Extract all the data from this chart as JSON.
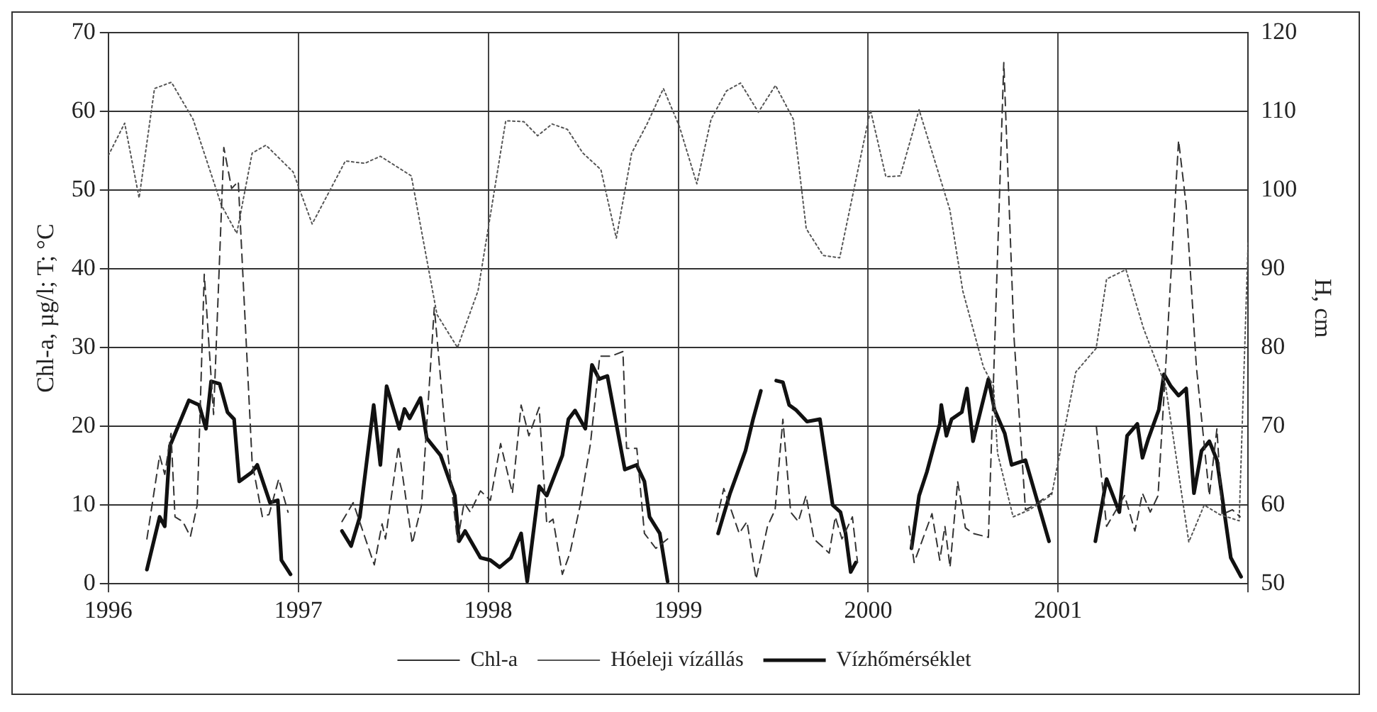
{
  "chart_data": {
    "type": "line",
    "ylabel": "Chl-a, µg/l; T; °C",
    "y2label": "H, cm",
    "xlim": [
      1996,
      2002
    ],
    "xticks": [
      1996,
      1997,
      1998,
      1999,
      2000,
      2001,
      {
        "value": 2002,
        "label": null
      }
    ],
    "ylim": [
      0,
      70
    ],
    "yticks": [
      0,
      10,
      20,
      30,
      40,
      50,
      60,
      70
    ],
    "y2lim": [
      50,
      120
    ],
    "y2ticks": [
      50,
      60,
      70,
      80,
      90,
      100,
      110,
      120
    ],
    "grid": true,
    "legend": "bottom",
    "marker": "none",
    "series": [
      {
        "name": "Chl-a",
        "color": "#333333",
        "line_style": "dashed",
        "x": [
          1996.203,
          1996.27,
          1996.297,
          1996.33,
          1996.351,
          1996.392,
          1996.432,
          1996.468,
          1996.505,
          1996.554,
          1996.608,
          1996.649,
          1996.684,
          1996.757,
          1996.811,
          1996.846,
          1996.897,
          1996.946,
          1997.1,
          1997.23,
          1997.289,
          1997.4,
          1997.441,
          1997.459,
          1997.527,
          1997.6,
          1997.649,
          1997.716,
          1997.77,
          1997.838,
          1997.873,
          1997.905,
          1997.959,
          1998.011,
          1998.065,
          1998.127,
          1998.173,
          1998.214,
          1998.268,
          1998.308,
          1998.341,
          1998.39,
          1998.43,
          1998.484,
          1998.538,
          1998.587,
          1998.646,
          1998.709,
          1998.728,
          1998.782,
          1998.822,
          1998.882,
          1998.944,
          1999.1,
          1999.2,
          1999.24,
          1999.321,
          1999.362,
          1999.41,
          1999.47,
          1999.51,
          1999.551,
          1999.592,
          1999.632,
          1999.673,
          1999.714,
          1999.795,
          1999.827,
          1999.862,
          1999.917,
          1999.944,
          2000.1,
          2000.215,
          2000.242,
          2000.336,
          2000.377,
          2000.404,
          2000.431,
          2000.471,
          2000.512,
          2000.552,
          2000.633,
          2000.714,
          2000.768,
          2000.828,
          2000.876,
          2000.965,
          2001.1,
          2001.201,
          2001.255,
          2001.35,
          2001.404,
          2001.444,
          2001.485,
          2001.526,
          2001.566,
          2001.634,
          2001.674,
          2001.728,
          2001.796,
          2001.836,
          2001.863,
          2001.917,
          2001.958
        ],
        "values": [
          5.7,
          16.3,
          13.9,
          19.1,
          8.5,
          7.9,
          6,
          10,
          39.3,
          21.5,
          55.4,
          50.2,
          51.1,
          15.4,
          8.5,
          8.8,
          13.3,
          9.1,
          null,
          7.9,
          10.3,
          2.4,
          7.6,
          5.7,
          17.5,
          5.1,
          10,
          35.1,
          20.3,
          5.4,
          10.3,
          9.1,
          11.8,
          10.6,
          17.8,
          11.5,
          22.7,
          18.8,
          22.4,
          7.6,
          8.2,
          1.2,
          3.9,
          10,
          17.8,
          28.9,
          28.9,
          29.5,
          17.2,
          17.2,
          6.4,
          4.5,
          5.7,
          null,
          7.9,
          12.1,
          6.4,
          7.9,
          0.6,
          7.3,
          9.4,
          20.9,
          9.1,
          7.9,
          11.2,
          5.7,
          3.9,
          8.5,
          5.7,
          8.5,
          2.7,
          null,
          7.3,
          2.7,
          8.9,
          3,
          7.3,
          2.1,
          13,
          7.1,
          6.4,
          5.9,
          66.2,
          31.2,
          9.4,
          10,
          11.5,
          null,
          20,
          7.3,
          11.2,
          6.7,
          11.5,
          9.1,
          11.2,
          27.5,
          56.3,
          48.1,
          27.5,
          11.2,
          19.7,
          8.8,
          9.4,
          8.5
        ]
      },
      {
        "name": "Hóeleji vízállás",
        "color": "#555555",
        "line_style": "dotted",
        "axis": "y2",
        "x": [
          1996,
          1996.086,
          1996.162,
          1996.243,
          1996.332,
          1996.446,
          1996.595,
          1996.676,
          1996.757,
          1996.83,
          1996.973,
          1997.073,
          1997.248,
          1997.35,
          1997.432,
          1997.595,
          1997.73,
          1997.838,
          1997.946,
          1998.092,
          1998.187,
          1998.26,
          1998.336,
          1998.417,
          1998.498,
          1998.593,
          1998.674,
          1998.755,
          1998.836,
          1998.922,
          1999.006,
          1999.098,
          1999.173,
          1999.254,
          1999.328,
          1999.422,
          1999.512,
          1999.606,
          1999.674,
          1999.763,
          1999.85,
          2000.012,
          2000.093,
          2000.169,
          2000.268,
          2000.43,
          2000.498,
          2000.607,
          2000.66,
          2000.681,
          2000.763,
          2000.85,
          2000.966,
          2001.093,
          2001.2,
          2001.255,
          2001.357,
          2001.45,
          2001.566,
          2001.688,
          2001.769,
          2001.85,
          2001.953,
          2002
        ],
        "values": [
          104.4,
          108.5,
          99,
          112.9,
          113.7,
          109,
          98.1,
          94.5,
          104.7,
          105.7,
          102.3,
          95.7,
          103.7,
          103.4,
          104.3,
          101.8,
          84.2,
          80,
          87.2,
          108.8,
          108.7,
          106.9,
          108.4,
          107.7,
          104.7,
          102.6,
          93.9,
          104.7,
          108.4,
          112.9,
          108.1,
          100.8,
          109,
          112.6,
          113.6,
          109.9,
          113.3,
          109,
          95.1,
          91.7,
          91.4,
          110.2,
          101.7,
          101.8,
          110.2,
          97.5,
          87.2,
          77.5,
          75.1,
          66.6,
          58.5,
          59.4,
          61.3,
          76.9,
          79.9,
          88.7,
          89.9,
          82.4,
          75.1,
          55.3,
          60,
          58.8,
          58,
          93.3
        ]
      },
      {
        "name": "Vízhőmérséklet",
        "color": "#111111",
        "line_style": "solid",
        "x": [
          1996.203,
          1996.27,
          1996.297,
          1996.324,
          1996.424,
          1996.478,
          1996.514,
          1996.541,
          1996.586,
          1996.627,
          1996.662,
          1996.689,
          1996.757,
          1996.784,
          1996.851,
          1996.892,
          1996.911,
          1996.959,
          1997.1,
          1997.23,
          1997.278,
          1997.324,
          1997.397,
          1997.432,
          1997.465,
          1997.532,
          1997.559,
          1997.586,
          1997.643,
          1997.676,
          1997.749,
          1997.824,
          1997.846,
          1997.878,
          1997.959,
          1998.011,
          1998.06,
          1998.119,
          1998.173,
          1998.205,
          1998.268,
          1998.308,
          1998.39,
          1998.422,
          1998.457,
          1998.511,
          1998.546,
          1998.584,
          1998.627,
          1998.719,
          1998.781,
          1998.822,
          1998.849,
          1998.903,
          1998.944,
          1999.1,
          1999.21,
          1999.273,
          1999.354,
          1999.394,
          1999.435,
          1999.47,
          1999.516,
          1999.551,
          1999.584,
          1999.619,
          1999.678,
          1999.746,
          1999.813,
          1999.854,
          1999.881,
          1999.908,
          1999.935,
          2000.1,
          2000.228,
          2000.268,
          2000.309,
          2000.377,
          2000.385,
          2000.412,
          2000.439,
          2000.493,
          2000.52,
          2000.552,
          2000.633,
          2000.665,
          2000.719,
          2000.755,
          2000.828,
          2000.952,
          2001.1,
          2001.196,
          2001.255,
          2001.322,
          2001.363,
          2001.417,
          2001.444,
          2001.476,
          2001.53,
          2001.557,
          2001.593,
          2001.634,
          2001.674,
          2001.715,
          2001.755,
          2001.796,
          2001.836,
          2001.909,
          2001.963
        ],
        "values": [
          1.8,
          8.5,
          7.3,
          17.5,
          23.3,
          22.7,
          19.7,
          25.7,
          25.4,
          21.8,
          20.9,
          13,
          14.2,
          15.1,
          10.3,
          10.6,
          3,
          1.2,
          null,
          6.7,
          4.8,
          8.5,
          22.7,
          15.1,
          25.1,
          19.7,
          22.2,
          21,
          23.6,
          18.5,
          16.3,
          11.2,
          5.4,
          6.7,
          3.3,
          3,
          2.1,
          3.3,
          6.4,
          0.3,
          12.4,
          11.2,
          16.3,
          20.9,
          22,
          19.7,
          27.8,
          26,
          26.4,
          14.5,
          15.1,
          13,
          8.5,
          6.4,
          0.3,
          null,
          6.4,
          11.5,
          16.9,
          20.9,
          24.5,
          null,
          25.8,
          25.6,
          22.7,
          22.1,
          20.6,
          20.9,
          10,
          9.1,
          6.4,
          1.5,
          2.7,
          null,
          4.5,
          11.2,
          14.2,
          20.3,
          22.7,
          18.8,
          20.9,
          21.8,
          24.8,
          18.1,
          26,
          22.1,
          19.1,
          15.1,
          15.7,
          5.4,
          null,
          5.4,
          13.3,
          9.1,
          18.8,
          20.3,
          16,
          18.5,
          22.1,
          26.6,
          25.1,
          23.9,
          24.8,
          11.5,
          16.9,
          18.1,
          15.7,
          3.3,
          0.9
        ]
      }
    ]
  }
}
